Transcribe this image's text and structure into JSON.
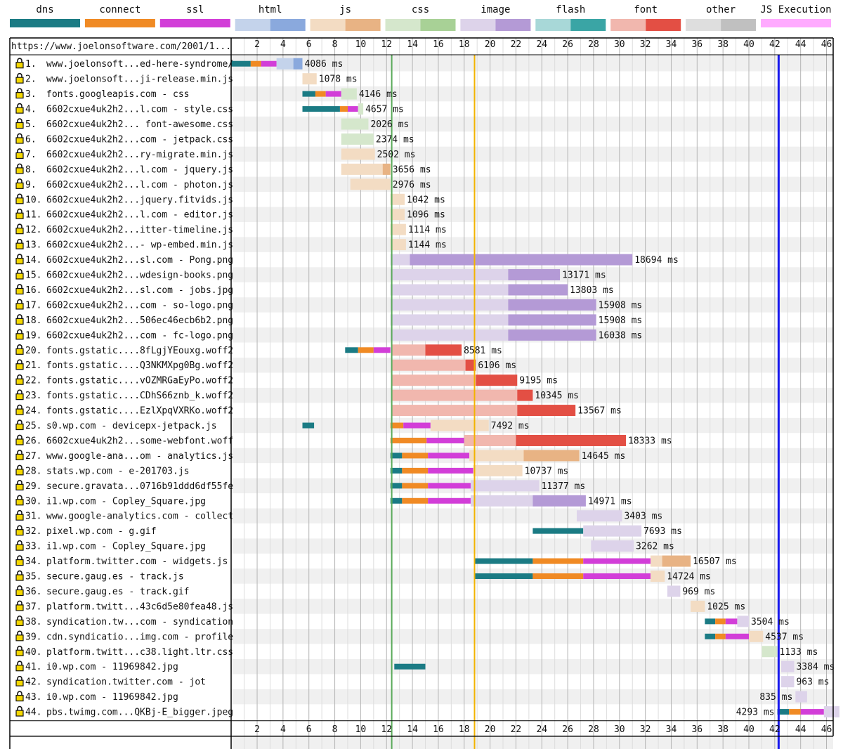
{
  "chart_data": {
    "type": "waterfall",
    "url": "https://www.joelonsoftware.com/2001/1...",
    "xlim": [
      0,
      47
    ],
    "xticks": [
      2,
      4,
      6,
      8,
      10,
      12,
      14,
      16,
      18,
      20,
      22,
      24,
      26,
      28,
      30,
      32,
      34,
      36,
      38,
      40,
      42,
      44,
      46
    ],
    "legend": [
      {
        "name": "dns",
        "colors": [
          "#1b7b84"
        ]
      },
      {
        "name": "connect",
        "colors": [
          "#f08a24"
        ]
      },
      {
        "name": "ssl",
        "colors": [
          "#d23ed8"
        ]
      },
      {
        "name": "html",
        "colors": [
          "#c4d3eb",
          "#8aa9dd"
        ]
      },
      {
        "name": "js",
        "colors": [
          "#f3dcc3",
          "#e8b384"
        ]
      },
      {
        "name": "css",
        "colors": [
          "#d5e7cc",
          "#a8d196"
        ]
      },
      {
        "name": "image",
        "colors": [
          "#ddd3ea",
          "#b49ad6"
        ]
      },
      {
        "name": "flash",
        "colors": [
          "#a8d8d8",
          "#3aa5a5"
        ]
      },
      {
        "name": "font",
        "colors": [
          "#f1b7ae",
          "#e34f44"
        ]
      },
      {
        "name": "other",
        "colors": [
          "#dedede",
          "#c0c0c0"
        ]
      },
      {
        "name": "JS Execution",
        "colors": [
          "#ffaaff"
        ]
      }
    ],
    "markers": [
      {
        "name": "start-render",
        "t": 12.4,
        "color": "#5aaa5a"
      },
      {
        "name": "dom-content-loaded",
        "t": 18.8,
        "color": "#f2b300"
      },
      {
        "name": "on-load",
        "t": 42.3,
        "color": "#1818ee"
      }
    ],
    "requests": [
      {
        "num": 1,
        "label": "www.joelonsoft...ed-here-syndrome/",
        "ms": "4086 ms",
        "type": "html",
        "dns": [
          0,
          1.5
        ],
        "connect": [
          1.5,
          2.3
        ],
        "ssl": [
          2.3,
          3.5
        ],
        "wait": [
          3.5,
          4.8
        ],
        "recv": [
          4.8,
          5.5
        ]
      },
      {
        "num": 2,
        "label": "www.joelonsoft...ji-release.min.js",
        "ms": "1078 ms",
        "type": "js",
        "wait": [
          5.5,
          6.6
        ]
      },
      {
        "num": 3,
        "label": "fonts.googleapis.com - css",
        "ms": "4146 ms",
        "type": "css",
        "dns": [
          5.5,
          6.5
        ],
        "connect": [
          6.5,
          7.3
        ],
        "ssl": [
          7.3,
          8.5
        ],
        "wait": [
          8.5,
          9.7
        ]
      },
      {
        "num": 4,
        "label": "6602cxue4uk2h2...l.com - style.css",
        "ms": "4657 ms",
        "type": "css",
        "dns": [
          5.5,
          8.4
        ],
        "connect": [
          8.4,
          9.0
        ],
        "ssl": [
          9.0,
          9.8
        ],
        "wait": [
          9.8,
          10.2
        ]
      },
      {
        "num": 5,
        "label": "6602cxue4uk2h2... font-awesome.css",
        "ms": "2026 ms",
        "type": "css",
        "wait": [
          8.5,
          10.6
        ]
      },
      {
        "num": 6,
        "label": "6602cxue4uk2h2...com - jetpack.css",
        "ms": "2374 ms",
        "type": "css",
        "wait": [
          8.5,
          11.0
        ]
      },
      {
        "num": 7,
        "label": "6602cxue4uk2h2...ry-migrate.min.js",
        "ms": "2502 ms",
        "type": "js",
        "wait": [
          8.5,
          11.1
        ]
      },
      {
        "num": 8,
        "label": "6602cxue4uk2h2...l.com - jquery.js",
        "ms": "3656 ms",
        "type": "js",
        "wait": [
          8.5,
          11.7
        ],
        "recv": [
          11.7,
          12.3
        ]
      },
      {
        "num": 9,
        "label": "6602cxue4uk2h2...l.com - photon.js",
        "ms": "2976 ms",
        "type": "js",
        "wait": [
          9.2,
          12.3
        ]
      },
      {
        "num": 10,
        "label": "6602cxue4uk2h2...jquery.fitvids.js",
        "ms": "1042 ms",
        "type": "js",
        "wait": [
          12.3,
          13.4
        ]
      },
      {
        "num": 11,
        "label": "6602cxue4uk2h2...l.com - editor.js",
        "ms": "1096 ms",
        "type": "js",
        "wait": [
          12.3,
          13.4
        ]
      },
      {
        "num": 12,
        "label": "6602cxue4uk2h2...itter-timeline.js",
        "ms": "1114 ms",
        "type": "js",
        "wait": [
          12.3,
          13.5
        ]
      },
      {
        "num": 13,
        "label": "6602cxue4uk2h2...- wp-embed.min.js",
        "ms": "1144 ms",
        "type": "js",
        "wait": [
          12.3,
          13.5
        ]
      },
      {
        "num": 14,
        "label": "6602cxue4uk2h2...sl.com - Pong.png",
        "ms": "18694 ms",
        "type": "image",
        "wait": [
          12.3,
          13.8
        ],
        "recv": [
          13.8,
          31.0
        ]
      },
      {
        "num": 15,
        "label": "6602cxue4uk2h2...wdesign-books.png",
        "ms": "13171 ms",
        "type": "image",
        "wait": [
          12.3,
          21.4
        ],
        "recv": [
          21.4,
          25.4
        ]
      },
      {
        "num": 16,
        "label": "6602cxue4uk2h2...sl.com - jobs.jpg",
        "ms": "13803 ms",
        "type": "image",
        "wait": [
          12.3,
          21.4
        ],
        "recv": [
          21.4,
          26.0
        ]
      },
      {
        "num": 17,
        "label": "6602cxue4uk2h2...com - so-logo.png",
        "ms": "15908 ms",
        "type": "image",
        "wait": [
          12.3,
          21.4
        ],
        "recv": [
          21.4,
          28.2
        ]
      },
      {
        "num": 18,
        "label": "6602cxue4uk2h2...506ec46ecb6b2.png",
        "ms": "15908 ms",
        "type": "image",
        "wait": [
          12.3,
          21.4
        ],
        "recv": [
          21.4,
          28.2
        ]
      },
      {
        "num": 19,
        "label": "6602cxue4uk2h2...com - fc-logo.png",
        "ms": "16038 ms",
        "type": "image",
        "wait": [
          12.3,
          21.4
        ],
        "recv": [
          21.4,
          28.2
        ]
      },
      {
        "num": 20,
        "label": "fonts.gstatic....8fLgjYEouxg.woff2",
        "ms": "8581 ms",
        "type": "font",
        "dns": [
          8.8,
          9.8
        ],
        "connect": [
          9.8,
          11.0
        ],
        "ssl": [
          11.0,
          12.3
        ],
        "wait": [
          12.4,
          15.0
        ],
        "recv": [
          15.0,
          17.8
        ]
      },
      {
        "num": 21,
        "label": "fonts.gstatic....Q3NKMXpg0Bg.woff2",
        "ms": "6106 ms",
        "type": "font",
        "wait": [
          12.4,
          18.1
        ],
        "recv": [
          18.1,
          18.9
        ]
      },
      {
        "num": 22,
        "label": "fonts.gstatic....vOZMRGaEyPo.woff2",
        "ms": "9195 ms",
        "type": "font",
        "wait": [
          12.4,
          18.9
        ],
        "recv": [
          18.9,
          22.1
        ]
      },
      {
        "num": 23,
        "label": "fonts.gstatic....CDhS66znb_k.woff2",
        "ms": "10345 ms",
        "type": "font",
        "wait": [
          12.4,
          22.1
        ],
        "recv": [
          22.1,
          23.3
        ]
      },
      {
        "num": 24,
        "label": "fonts.gstatic....EzlXpqVXRKo.woff2",
        "ms": "13567 ms",
        "type": "font",
        "wait": [
          12.4,
          22.1
        ],
        "recv": [
          22.1,
          26.6
        ]
      },
      {
        "num": 25,
        "label": "s0.wp.com - devicepx-jetpack.js",
        "ms": "7492 ms",
        "type": "js",
        "dns_extra": [
          5.5,
          6.4
        ],
        "connect": [
          12.3,
          13.3
        ],
        "ssl": [
          13.3,
          15.4
        ],
        "wait": [
          15.4,
          19.9
        ]
      },
      {
        "num": 26,
        "label": "6602cxue4uk2h2...some-webfont.woff",
        "ms": "18333 ms",
        "type": "font",
        "connect": [
          12.3,
          15.1
        ],
        "ssl": [
          15.1,
          18.0
        ],
        "wait": [
          18.0,
          22.0
        ],
        "recv": [
          22.0,
          30.5
        ]
      },
      {
        "num": 27,
        "label": "www.google-ana...om - analytics.js",
        "ms": "14645 ms",
        "type": "js",
        "dns": [
          12.3,
          13.2
        ],
        "connect": [
          13.2,
          15.2
        ],
        "ssl": [
          15.2,
          18.4
        ],
        "wait": [
          18.4,
          22.6
        ],
        "recv": [
          22.6,
          26.9
        ]
      },
      {
        "num": 28,
        "label": "stats.wp.com - e-201703.js",
        "ms": "10737 ms",
        "type": "js",
        "dns": [
          12.3,
          13.2
        ],
        "connect": [
          13.2,
          15.2
        ],
        "ssl": [
          15.2,
          18.7
        ],
        "wait": [
          18.7,
          22.5
        ]
      },
      {
        "num": 29,
        "label": "secure.gravata...0716b91ddd6df55fe",
        "ms": "11377 ms",
        "type": "image",
        "dns": [
          12.3,
          13.2
        ],
        "connect": [
          13.2,
          15.2
        ],
        "ssl": [
          15.2,
          18.5
        ],
        "wait": [
          18.5,
          23.8
        ]
      },
      {
        "num": 30,
        "label": "i1.wp.com - Copley_Square.jpg",
        "ms": "14971 ms",
        "type": "image",
        "dns": [
          12.3,
          13.2
        ],
        "connect": [
          13.2,
          15.2
        ],
        "ssl": [
          15.2,
          18.5
        ],
        "wait": [
          18.5,
          23.3
        ],
        "recv": [
          23.3,
          27.4
        ]
      },
      {
        "num": 31,
        "label": "www.google-analytics.com - collect",
        "ms": "3403 ms",
        "type": "image",
        "wait": [
          26.7,
          30.2
        ]
      },
      {
        "num": 32,
        "label": "pixel.wp.com - g.gif",
        "ms": "7693 ms",
        "type": "image",
        "dns": [
          23.3,
          27.2
        ],
        "wait": [
          27.2,
          31.7
        ]
      },
      {
        "num": 33,
        "label": "i1.wp.com - Copley_Square.jpg",
        "ms": "3262 ms",
        "type": "image",
        "wait": [
          27.8,
          31.1
        ]
      },
      {
        "num": 34,
        "label": "platform.twitter.com - widgets.js",
        "ms": "16507 ms",
        "type": "js",
        "dns": [
          18.8,
          23.3
        ],
        "connect": [
          23.3,
          27.2
        ],
        "ssl": [
          27.2,
          32.4
        ],
        "wait": [
          32.4,
          33.3
        ],
        "recv": [
          33.3,
          35.5
        ]
      },
      {
        "num": 35,
        "label": "secure.gaug.es - track.js",
        "ms": "14724 ms",
        "type": "js",
        "dns": [
          18.8,
          23.3
        ],
        "connect": [
          23.3,
          27.2
        ],
        "ssl": [
          27.2,
          32.4
        ],
        "wait": [
          32.4,
          33.5
        ]
      },
      {
        "num": 36,
        "label": "secure.gaug.es - track.gif",
        "ms": "969 ms",
        "type": "image",
        "wait": [
          33.7,
          34.7
        ]
      },
      {
        "num": 37,
        "label": "platform.twitt...43c6d5e80fea48.js",
        "ms": "1025 ms",
        "type": "js",
        "wait": [
          35.5,
          36.6
        ]
      },
      {
        "num": 38,
        "label": "syndication.tw...com - syndication",
        "ms": "3504 ms",
        "type": "image",
        "dns": [
          36.6,
          37.4
        ],
        "connect": [
          37.4,
          38.2
        ],
        "ssl": [
          38.2,
          39.1
        ],
        "wait": [
          39.1,
          40.0
        ]
      },
      {
        "num": 39,
        "label": "cdn.syndicatio...img.com - profile",
        "ms": "4537 ms",
        "type": "js",
        "dns": [
          36.6,
          37.4
        ],
        "connect": [
          37.4,
          38.2
        ],
        "ssl": [
          38.2,
          40.0
        ],
        "wait": [
          40.0,
          41.1
        ]
      },
      {
        "num": 40,
        "label": "platform.twitt...c38.light.ltr.css",
        "ms": "1133 ms",
        "type": "css",
        "wait": [
          41.0,
          42.2
        ]
      },
      {
        "num": 41,
        "label": "i0.wp.com - 11969842.jpg",
        "ms": "3384 ms",
        "type": "image",
        "dns_extra": [
          12.6,
          15.0
        ],
        "wait": [
          42.5,
          43.5
        ]
      },
      {
        "num": 42,
        "label": "syndication.twitter.com - jot",
        "ms": "963 ms",
        "type": "image",
        "wait": [
          42.5,
          43.5
        ]
      },
      {
        "num": 43,
        "label": "i0.wp.com - 11969842.jpg",
        "ms": "835 ms",
        "type": "image",
        "wait": [
          43.6,
          44.5
        ],
        "label_left": true
      },
      {
        "num": 44,
        "label": "pbs.twimg.com...QKBj-E_bigger.jpeg",
        "ms": "4293 ms",
        "type": "image",
        "dns": [
          42.2,
          43.1
        ],
        "connect": [
          43.1,
          44.0
        ],
        "ssl": [
          44.0,
          45.8
        ],
        "wait": [
          45.8,
          47.0
        ],
        "label_left": true
      }
    ]
  }
}
